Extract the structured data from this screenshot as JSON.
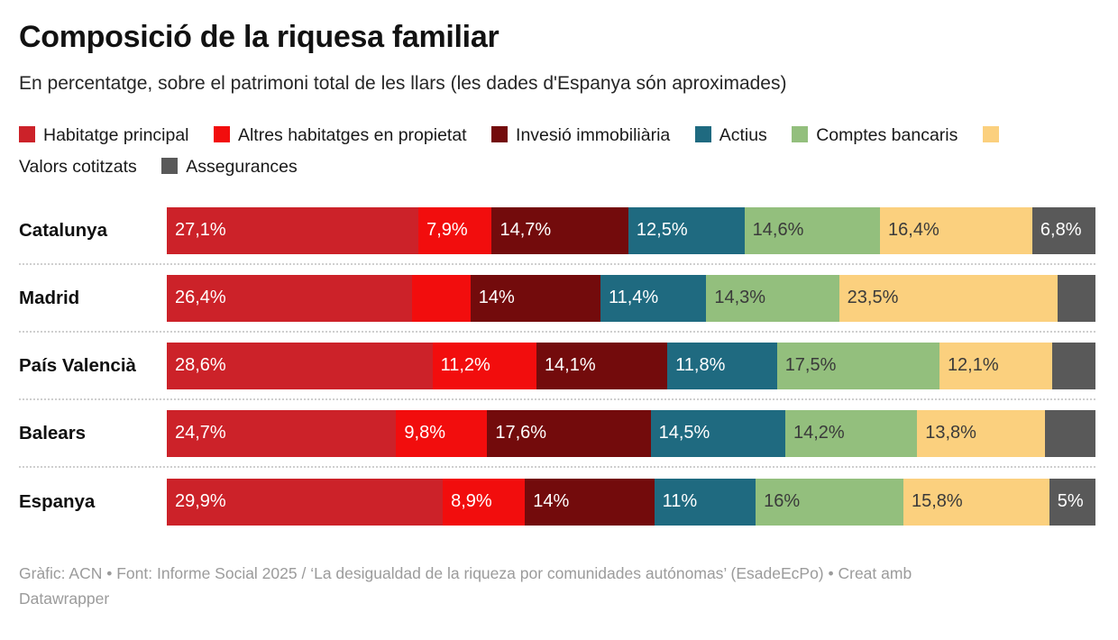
{
  "header": {
    "title": "Composició de la riquesa familiar",
    "subtitle": "En percentatge, sobre el patrimoni total de les llars (les dades d'Espanya són aproximades)"
  },
  "legend": {
    "items": [
      {
        "label": "Habitatge principal",
        "color": "#cc2229"
      },
      {
        "label": "Altres habitatges en propietat",
        "color": "#f20d0d"
      },
      {
        "label": "Invesió immobiliària",
        "color": "#730b0c"
      },
      {
        "label": "Actius",
        "color": "#1f6a80"
      },
      {
        "label": "Comptes bancaris",
        "color": "#93bf7d"
      },
      {
        "label": "Valors cotitzats",
        "color": "#fbd07e"
      },
      {
        "label": "Assegurances",
        "color": "#595959"
      }
    ]
  },
  "chart_data": {
    "type": "bar",
    "stacked": true,
    "orientation": "horizontal",
    "unit": "%",
    "title": "Composició de la riquesa familiar",
    "subtitle": "En percentatge, sobre el patrimoni total de les llars (les dades d'Espanya són aproximades)",
    "x_range": [
      0,
      100
    ],
    "grid": false,
    "legend_position": "top",
    "categories": [
      "Catalunya",
      "Madrid",
      "País Valencià",
      "Balears",
      "Espanya"
    ],
    "series": [
      {
        "name": "Habitatge principal",
        "color": "#cc2229",
        "text_color": "#ffffff",
        "values": [
          27.1,
          26.4,
          28.6,
          24.7,
          29.9
        ],
        "labels": [
          "27,1%",
          "26,4%",
          "28,6%",
          "24,7%",
          "29,9%"
        ]
      },
      {
        "name": "Altres habitatges en propietat",
        "color": "#f20d0d",
        "text_color": "#ffffff",
        "values": [
          7.9,
          6.3,
          11.2,
          9.8,
          8.9
        ],
        "labels": [
          "7,9%",
          null,
          "11,2%",
          "9,8%",
          "8,9%"
        ]
      },
      {
        "name": "Invesió immobiliària",
        "color": "#730b0c",
        "text_color": "#ffffff",
        "values": [
          14.7,
          14,
          14.1,
          17.6,
          14
        ],
        "labels": [
          "14,7%",
          "14%",
          "14,1%",
          "17,6%",
          "14%"
        ]
      },
      {
        "name": "Actius",
        "color": "#1f6a80",
        "text_color": "#ffffff",
        "values": [
          12.5,
          11.4,
          11.8,
          14.5,
          11
        ],
        "labels": [
          "12,5%",
          "11,4%",
          "11,8%",
          "14,5%",
          "11%"
        ]
      },
      {
        "name": "Comptes bancaris",
        "color": "#93bf7d",
        "text_color": "#3a3a3a",
        "values": [
          14.6,
          14.3,
          17.5,
          14.2,
          16
        ],
        "labels": [
          "14,6%",
          "14,3%",
          "17,5%",
          "14,2%",
          "16%"
        ]
      },
      {
        "name": "Valors cotitzats",
        "color": "#fbd07e",
        "text_color": "#3a3a3a",
        "values": [
          16.4,
          23.5,
          12.1,
          13.8,
          15.8
        ],
        "labels": [
          "16,4%",
          "23,5%",
          "12,1%",
          "13,8%",
          "15,8%"
        ]
      },
      {
        "name": "Assegurances",
        "color": "#595959",
        "text_color": "#ffffff",
        "values": [
          6.8,
          4.1,
          4.7,
          5.4,
          5
        ],
        "labels": [
          "6,8%",
          null,
          null,
          null,
          "5%"
        ]
      }
    ]
  },
  "footer": {
    "credit": "Gràfic: ACN • Font: Informe Social 2025 / ‘La desigualdad de la riqueza por comunidades autónomas’ (EsadeEcPo) • Creat amb Datawrapper"
  }
}
